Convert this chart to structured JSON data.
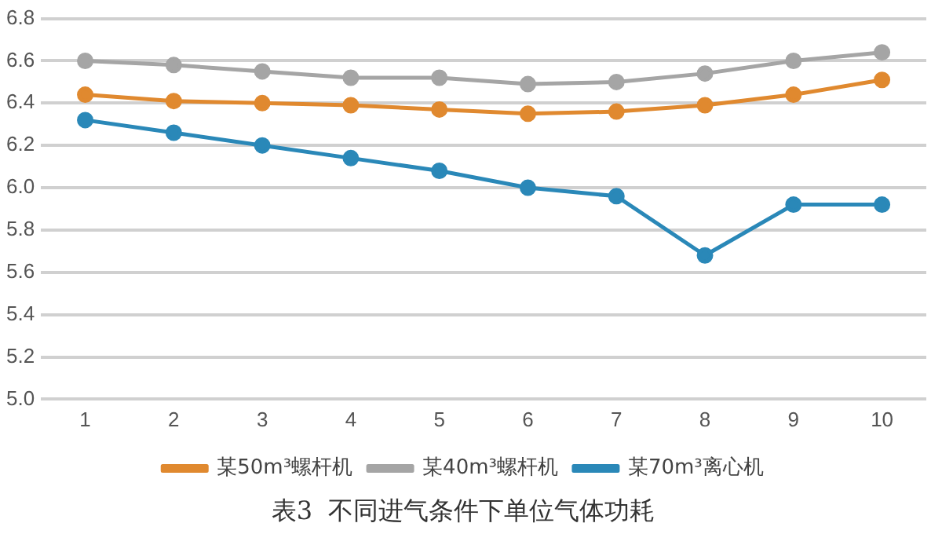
{
  "chart_data": {
    "type": "line",
    "title": "表3  不同进气条件下单位气体功耗",
    "categories": [
      "1",
      "2",
      "3",
      "4",
      "5",
      "6",
      "7",
      "8",
      "9",
      "10"
    ],
    "series": [
      {
        "name": "某50m³螺杆机",
        "color": "#e0892f",
        "values": [
          6.44,
          6.41,
          6.4,
          6.39,
          6.37,
          6.35,
          6.36,
          6.39,
          6.44,
          6.51
        ]
      },
      {
        "name": "某40m³螺杆机",
        "color": "#a5a5a5",
        "values": [
          6.6,
          6.58,
          6.55,
          6.52,
          6.52,
          6.49,
          6.5,
          6.54,
          6.6,
          6.64
        ]
      },
      {
        "name": "某70m³离心机",
        "color": "#2a88b8",
        "values": [
          6.32,
          6.26,
          6.2,
          6.14,
          6.08,
          6.0,
          5.96,
          5.68,
          5.92,
          5.92
        ]
      }
    ],
    "ylim": [
      5.0,
      6.8
    ],
    "yticks": [
      {
        "value": 5,
        "label": "5.0"
      },
      5.2,
      5.4,
      5.6,
      5.8,
      {
        "value": 6,
        "label": "6.0"
      },
      6.2,
      6.4,
      6.6,
      6.8
    ],
    "grid": "y",
    "legend": "bottom",
    "marker": "circle",
    "line_style": "solid"
  }
}
